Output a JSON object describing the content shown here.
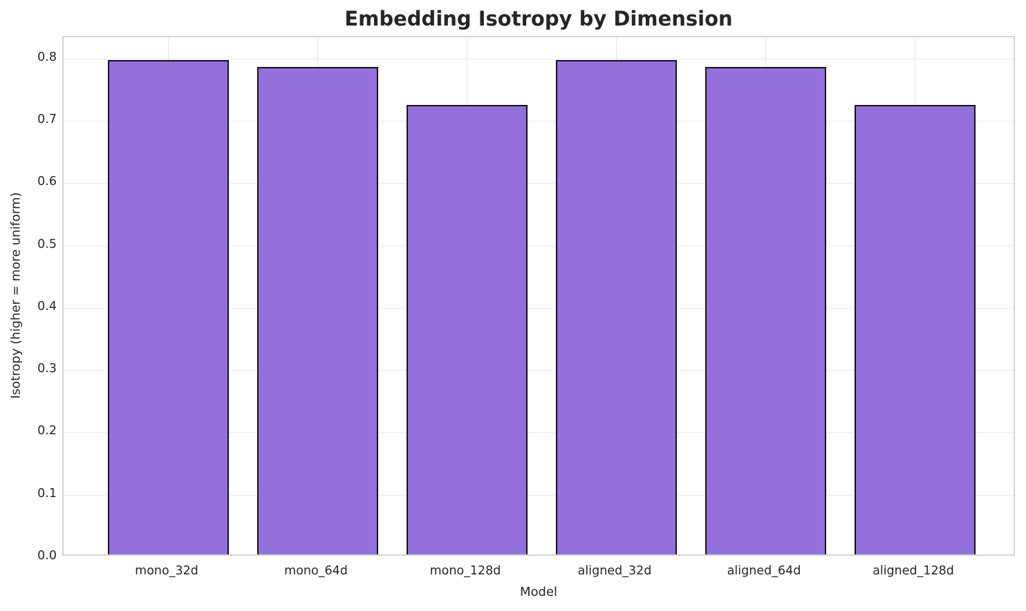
{
  "chart_data": {
    "type": "bar",
    "title": "Embedding Isotropy by Dimension",
    "xlabel": "Model",
    "ylabel": "Isotropy (higher = more uniform)",
    "categories": [
      "mono_32d",
      "mono_64d",
      "mono_128d",
      "aligned_32d",
      "aligned_64d",
      "aligned_128d"
    ],
    "values": [
      0.793,
      0.782,
      0.721,
      0.793,
      0.782,
      0.721
    ],
    "ylim": [
      0,
      0.834
    ],
    "yticks": [
      0.0,
      0.1,
      0.2,
      0.3,
      0.4,
      0.5,
      0.6,
      0.7,
      0.8
    ],
    "ytick_labels": [
      "0.0",
      "0.1",
      "0.2",
      "0.3",
      "0.4",
      "0.5",
      "0.6",
      "0.7",
      "0.8"
    ],
    "grid": true,
    "legend": "none",
    "bar_color": "#9370DB",
    "bar_edge_color": "#121212",
    "grid_color": "#e9e9e9",
    "spine_color": "#d4d4d4",
    "text_color": "#262626",
    "background_color": "#ffffff"
  }
}
